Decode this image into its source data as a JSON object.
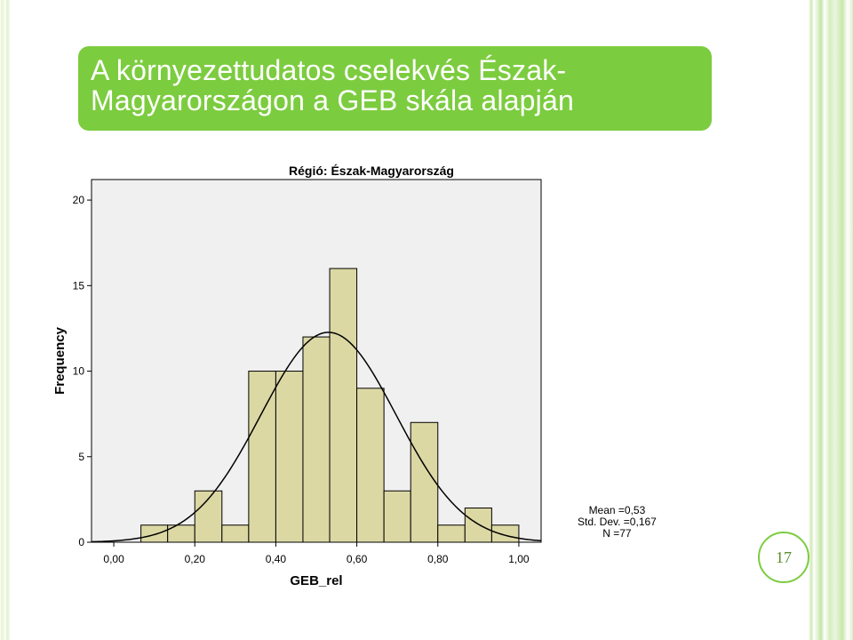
{
  "slide": {
    "title_line1": "A környezettudatos cselekvés Észak-",
    "title_line2": "Magyarországon a GEB skála alapján",
    "page_number": "17",
    "accent_color": "#7ccc3f"
  },
  "stats": {
    "mean": "Mean =0,53",
    "std": "Std. Dev. =0,167",
    "n": "N =77"
  },
  "chart_data": {
    "type": "bar",
    "title": "Régió: Észak-Magyarország",
    "xlabel": "GEB_rel",
    "ylabel": "Frequency",
    "bin_width": 0.0667,
    "bins": [
      {
        "x0": 0.067,
        "x1": 0.133,
        "count": 1
      },
      {
        "x0": 0.133,
        "x1": 0.2,
        "count": 1
      },
      {
        "x0": 0.2,
        "x1": 0.267,
        "count": 3
      },
      {
        "x0": 0.267,
        "x1": 0.333,
        "count": 1
      },
      {
        "x0": 0.333,
        "x1": 0.4,
        "count": 10
      },
      {
        "x0": 0.4,
        "x1": 0.467,
        "count": 10
      },
      {
        "x0": 0.467,
        "x1": 0.533,
        "count": 12
      },
      {
        "x0": 0.533,
        "x1": 0.6,
        "count": 16
      },
      {
        "x0": 0.6,
        "x1": 0.667,
        "count": 9
      },
      {
        "x0": 0.667,
        "x1": 0.733,
        "count": 3
      },
      {
        "x0": 0.733,
        "x1": 0.8,
        "count": 7
      },
      {
        "x0": 0.8,
        "x1": 0.867,
        "count": 1
      },
      {
        "x0": 0.867,
        "x1": 0.933,
        "count": 2
      },
      {
        "x0": 0.933,
        "x1": 1.0,
        "count": 1
      }
    ],
    "x_ticks": [
      0.0,
      0.2,
      0.4,
      0.6,
      0.8,
      1.0
    ],
    "x_tick_labels": [
      "0,00",
      "0,20",
      "0,40",
      "0,60",
      "0,80",
      "1,00"
    ],
    "y_ticks": [
      0,
      5,
      10,
      15,
      20
    ],
    "y_tick_labels": [
      "0",
      "5",
      "10",
      "15",
      "20"
    ],
    "xlim": [
      -0.055,
      1.055
    ],
    "ylim": [
      0,
      21.2
    ],
    "normal_curve": {
      "mean": 0.53,
      "std": 0.167,
      "n": 77
    },
    "bar_color": "#dcd8a4",
    "plot_background": "#f0f0f0"
  }
}
